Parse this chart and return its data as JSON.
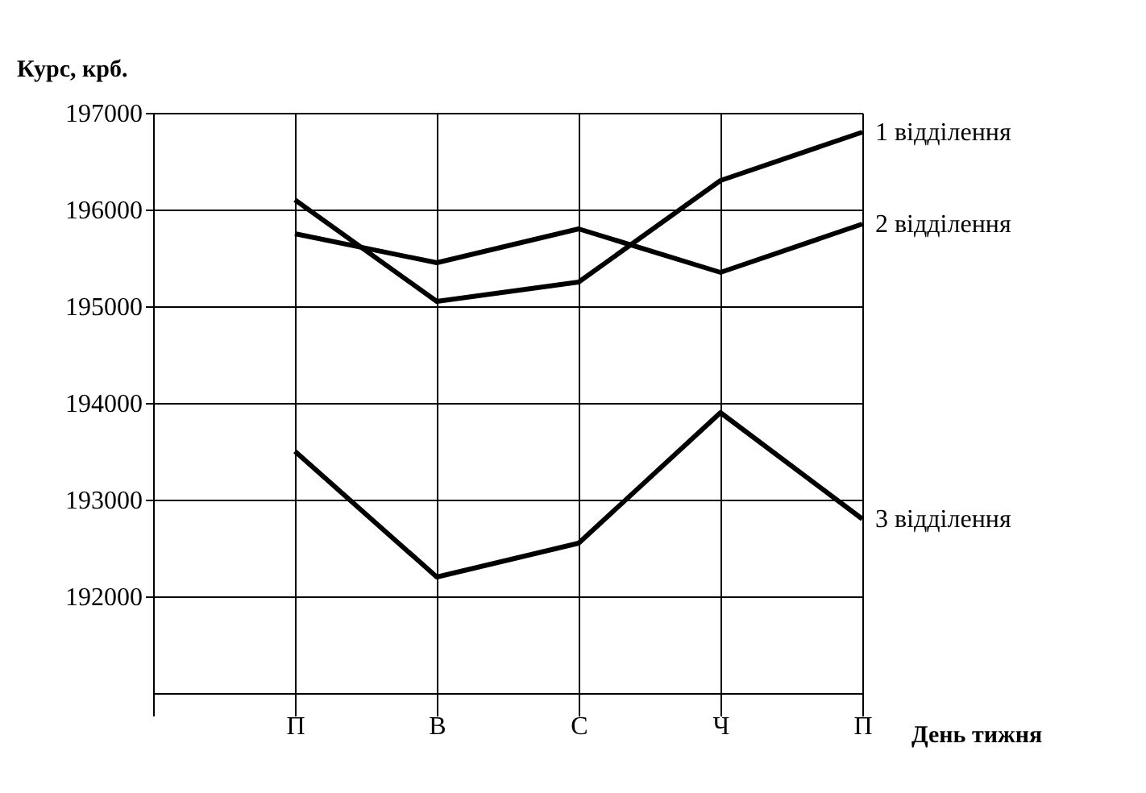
{
  "chart_data": {
    "type": "line",
    "ylabel": "Курс, крб.",
    "xlabel": "День тижня",
    "categories": [
      null,
      "П",
      "В",
      "С",
      "Ч",
      "П"
    ],
    "series": [
      {
        "name": "1 відділення",
        "color": "#000000",
        "values": [
          null,
          196100,
          195050,
          195250,
          196300,
          196800
        ]
      },
      {
        "name": "2 відділення",
        "color": "#000000",
        "values": [
          null,
          195750,
          195450,
          195800,
          195350,
          195850
        ]
      },
      {
        "name": "3 відділення",
        "color": "#000000",
        "values": [
          null,
          193500,
          192200,
          192550,
          193900,
          192800
        ]
      }
    ],
    "ylim": [
      191000,
      197000
    ],
    "yticks": [
      192000,
      193000,
      194000,
      195000,
      196000,
      197000
    ],
    "grid": true,
    "legend": false,
    "marker": "none",
    "line_style": "solid"
  }
}
